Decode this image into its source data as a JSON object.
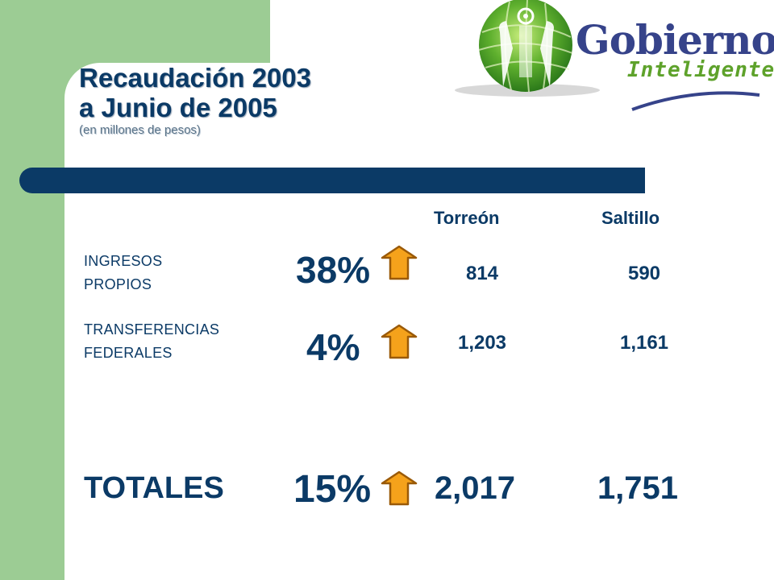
{
  "title": {
    "line1": "Recaudación 2003",
    "line2": "a Junio de 2005",
    "subtitle": "(en millones de pesos)"
  },
  "logo": {
    "word": "Gobierno",
    "sub": "Inteligente"
  },
  "columns": [
    "Torreón",
    "Saltillo"
  ],
  "rows": [
    {
      "label_line1": "INGRESOS",
      "label_line2": "PROPIOS",
      "pct": "38%",
      "torreon": "814",
      "saltillo": "590"
    },
    {
      "label_line1": "TRANSFERENCIAS",
      "label_line2": "FEDERALES",
      "pct": "4%",
      "torreon": "1,203",
      "saltillo": "1,161"
    }
  ],
  "totals": {
    "label": "TOTALES",
    "pct": "15%",
    "torreon": "2,017",
    "saltillo": "1,751"
  },
  "colors": {
    "navy": "#0b3a66",
    "green": "#9ccc94",
    "arrow": "#f5a21b",
    "logo_blue": "#36438a",
    "logo_green": "#5ea22b"
  },
  "icons": {
    "increase": "up-arrow-icon",
    "globe": "globe-logo-icon"
  }
}
